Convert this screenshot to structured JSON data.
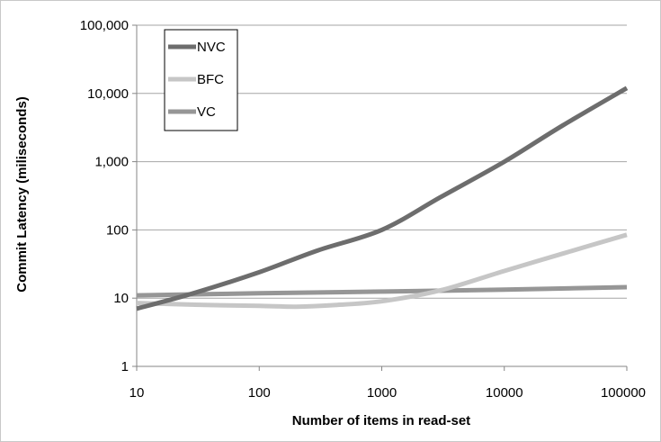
{
  "chart_data": {
    "type": "line",
    "xlabel": "Number of items in read-set",
    "ylabel": "Commit Latency (miliseconds)",
    "x_scale": "log",
    "y_scale": "log",
    "xlim": [
      10,
      100000
    ],
    "ylim": [
      1,
      100000
    ],
    "x_ticks": [
      "10",
      "100",
      "1000",
      "10000",
      "100000"
    ],
    "y_ticks": [
      "1",
      "10",
      "100",
      "1,000",
      "10,000",
      "100,000"
    ],
    "grid": "horizontal",
    "legend_position": "top-left",
    "series": [
      {
        "name": "NVC",
        "color": "#6d6d6d",
        "x": [
          10,
          30,
          100,
          300,
          1000,
          3000,
          10000,
          30000,
          100000
        ],
        "y": [
          7,
          12,
          24,
          50,
          100,
          300,
          1000,
          3400,
          12000
        ]
      },
      {
        "name": "BFC",
        "color": "#c6c6c6",
        "x": [
          10,
          30,
          100,
          200,
          400,
          1000,
          3000,
          10000,
          30000,
          100000
        ],
        "y": [
          8.5,
          8.0,
          7.7,
          7.5,
          7.9,
          9.0,
          13,
          25,
          45,
          85
        ]
      },
      {
        "name": "VC",
        "color": "#969696",
        "x": [
          10,
          100,
          1000,
          10000,
          100000
        ],
        "y": [
          11,
          11.8,
          12.5,
          13.3,
          14.5
        ]
      }
    ]
  }
}
